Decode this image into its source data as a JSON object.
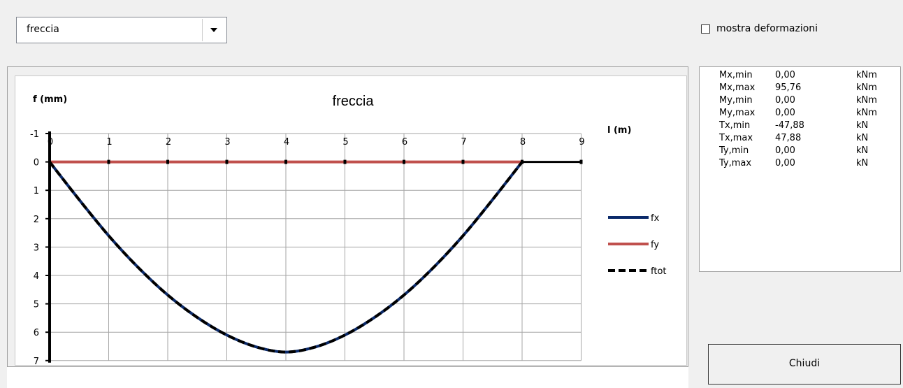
{
  "combo": {
    "value": "freccia"
  },
  "deformations_checkbox": {
    "label": "mostra deformazioni",
    "checked": false
  },
  "chart_data": {
    "type": "line",
    "title": "freccia",
    "ylabel": "f (mm)",
    "xlabel": "l (m)",
    "xlim": [
      0,
      9
    ],
    "ylim": [
      -1,
      7
    ],
    "y_inverted": true,
    "grid": true,
    "x_ticks": [
      "0",
      "1",
      "2",
      "3",
      "4",
      "5",
      "6",
      "7",
      "8",
      "9"
    ],
    "y_ticks": [
      "-1",
      "0",
      "1",
      "2",
      "3",
      "4",
      "5",
      "6",
      "7"
    ],
    "legend_position": "right",
    "series": [
      {
        "name": "fx",
        "color": "#0b2a6a",
        "style": "solid",
        "x": [
          0,
          0.5,
          1,
          1.5,
          2,
          2.5,
          3,
          3.5,
          4,
          4.5,
          5,
          5.5,
          6,
          6.5,
          7,
          7.5,
          8
        ],
        "y": [
          0,
          1.33,
          2.6,
          3.72,
          4.69,
          5.48,
          6.1,
          6.52,
          6.7,
          6.52,
          6.1,
          5.48,
          4.69,
          3.72,
          2.6,
          1.33,
          0
        ]
      },
      {
        "name": "fy",
        "color": "#c0504d",
        "style": "solid",
        "x": [
          0,
          8
        ],
        "y": [
          0,
          0
        ]
      },
      {
        "name": "ftot",
        "color": "#000000",
        "style": "dashed",
        "x": [
          0,
          0.5,
          1,
          1.5,
          2,
          2.5,
          3,
          3.5,
          4,
          4.5,
          5,
          5.5,
          6,
          6.5,
          7,
          7.5,
          8
        ],
        "y": [
          0,
          1.33,
          2.6,
          3.72,
          4.69,
          5.48,
          6.1,
          6.52,
          6.7,
          6.52,
          6.1,
          5.48,
          4.69,
          3.72,
          2.6,
          1.33,
          0
        ]
      }
    ],
    "baseline": {
      "x": [
        8,
        9
      ],
      "y": [
        0,
        0
      ]
    }
  },
  "results": [
    {
      "name": "Mx,min",
      "value": "0,00",
      "unit": "kNm"
    },
    {
      "name": "Mx,max",
      "value": "95,76",
      "unit": "kNm"
    },
    {
      "name": "My,min",
      "value": "0,00",
      "unit": "kNm"
    },
    {
      "name": "My,max",
      "value": "0,00",
      "unit": "kNm"
    },
    {
      "name": "Tx,min",
      "value": "-47,88",
      "unit": "kN"
    },
    {
      "name": "Tx,max",
      "value": "47,88",
      "unit": "kN"
    },
    {
      "name": "Ty,min",
      "value": "0,00",
      "unit": "kN"
    },
    {
      "name": "Ty,max",
      "value": "0,00",
      "unit": "kN"
    }
  ],
  "close_button": {
    "label": "Chiudi"
  }
}
